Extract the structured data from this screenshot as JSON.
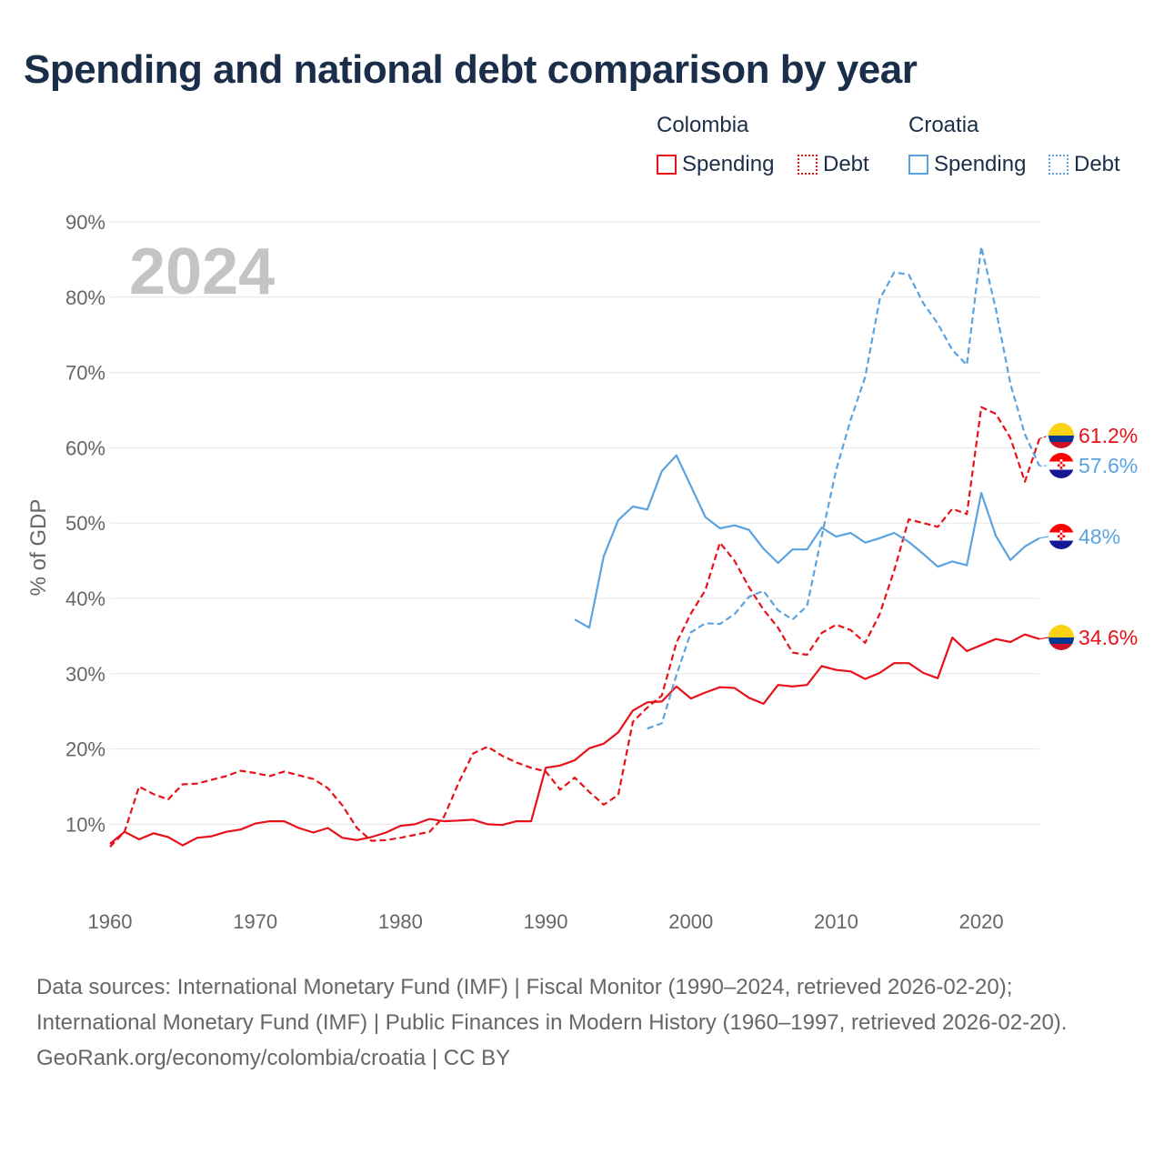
{
  "title": "Spending and national debt comparison by year",
  "legend": {
    "groups": [
      {
        "country": "Colombia",
        "spending_label": "Spending",
        "debt_label": "Debt",
        "color": "#e8111a"
      },
      {
        "country": "Croatia",
        "spending_label": "Spending",
        "debt_label": "Debt",
        "color": "#5ba3e0"
      }
    ]
  },
  "chart_data": {
    "type": "line",
    "title": "Spending and national debt comparison by year",
    "xlabel": "",
    "ylabel": "% of GDP",
    "xlim": [
      1960,
      2024
    ],
    "ylim": [
      0,
      90
    ],
    "y_ticks": [
      10,
      20,
      30,
      40,
      50,
      60,
      70,
      80,
      90
    ],
    "y_tick_labels": [
      "10%",
      "20%",
      "30%",
      "40%",
      "50%",
      "60%",
      "70%",
      "80%",
      "90%"
    ],
    "x_ticks": [
      1960,
      1970,
      1980,
      1990,
      2000,
      2010,
      2020
    ],
    "x_tick_labels": [
      "1960",
      "1970",
      "1980",
      "1990",
      "2000",
      "2010",
      "2020"
    ],
    "year_watermark": "2024",
    "series": [
      {
        "name": "Colombia Spending",
        "country": "Colombia",
        "style": "solid",
        "color": "#e8111a",
        "end_label": "34.6%",
        "x": [
          1960,
          1961,
          1962,
          1963,
          1964,
          1965,
          1966,
          1967,
          1968,
          1969,
          1970,
          1971,
          1972,
          1973,
          1974,
          1975,
          1976,
          1977,
          1978,
          1979,
          1980,
          1981,
          1982,
          1983,
          1984,
          1985,
          1986,
          1987,
          1988,
          1989,
          1990,
          1991,
          1992,
          1993,
          1994,
          1995,
          1996,
          1997,
          1998,
          1999,
          2000,
          2001,
          2002,
          2003,
          2004,
          2005,
          2006,
          2007,
          2008,
          2009,
          2010,
          2011,
          2012,
          2013,
          2014,
          2015,
          2016,
          2017,
          2018,
          2019,
          2020,
          2021,
          2022,
          2023,
          2024
        ],
        "values": [
          7.4,
          9.0,
          8.0,
          8.8,
          8.3,
          7.2,
          8.2,
          8.4,
          9.0,
          9.3,
          10.1,
          10.4,
          10.4,
          9.5,
          8.9,
          9.5,
          8.2,
          7.9,
          8.3,
          8.9,
          9.8,
          10.0,
          10.7,
          10.4,
          10.5,
          10.6,
          10.0,
          9.9,
          10.4,
          10.4,
          17.5,
          17.8,
          18.5,
          20.1,
          20.7,
          22.2,
          25.1,
          26.2,
          26.3,
          28.3,
          26.7,
          27.5,
          28.2,
          28.1,
          26.8,
          26.0,
          28.5,
          28.3,
          28.5,
          31.0,
          30.5,
          30.3,
          29.3,
          30.1,
          31.4,
          31.4,
          30.1,
          29.4,
          34.8,
          33.0,
          33.8,
          34.6,
          34.2,
          35.2,
          34.6
        ]
      },
      {
        "name": "Colombia Debt",
        "country": "Colombia",
        "style": "dashed",
        "color": "#e8111a",
        "end_label": "61.2%",
        "x": [
          1960,
          1961,
          1962,
          1963,
          1964,
          1965,
          1966,
          1967,
          1968,
          1969,
          1970,
          1971,
          1972,
          1973,
          1974,
          1975,
          1976,
          1977,
          1978,
          1979,
          1980,
          1981,
          1982,
          1983,
          1984,
          1985,
          1986,
          1987,
          1988,
          1989,
          1990,
          1991,
          1992,
          1993,
          1994,
          1995,
          1996,
          1997,
          1998,
          1999,
          2000,
          2001,
          2002,
          2003,
          2004,
          2005,
          2006,
          2007,
          2008,
          2009,
          2010,
          2011,
          2012,
          2013,
          2014,
          2015,
          2016,
          2017,
          2018,
          2019,
          2020,
          2021,
          2022,
          2023,
          2024
        ],
        "values": [
          7.0,
          9.0,
          15.0,
          14.0,
          13.3,
          15.3,
          15.4,
          15.9,
          16.4,
          17.1,
          16.8,
          16.4,
          17.0,
          16.5,
          16.0,
          14.8,
          12.5,
          9.5,
          7.8,
          7.9,
          8.2,
          8.6,
          9.0,
          11.0,
          15.5,
          19.4,
          20.3,
          19.1,
          18.2,
          17.5,
          17.0,
          14.6,
          16.2,
          14.3,
          12.6,
          13.9,
          23.6,
          25.5,
          27.1,
          34.1,
          38.0,
          41.1,
          47.4,
          45.0,
          41.5,
          38.5,
          36.1,
          32.8,
          32.5,
          35.4,
          36.5,
          35.8,
          34.1,
          37.9,
          43.7,
          50.5,
          50.0,
          49.5,
          51.9,
          51.2,
          65.4,
          64.5,
          61.3,
          55.5,
          61.2
        ]
      },
      {
        "name": "Croatia Spending",
        "country": "Croatia",
        "style": "solid",
        "color": "#5ba3e0",
        "end_label": "48%",
        "x": [
          1992,
          1993,
          1994,
          1995,
          1996,
          1997,
          1998,
          1999,
          2000,
          2001,
          2002,
          2003,
          2004,
          2005,
          2006,
          2007,
          2008,
          2009,
          2010,
          2011,
          2012,
          2013,
          2014,
          2015,
          2016,
          2017,
          2018,
          2019,
          2020,
          2021,
          2022,
          2023,
          2024
        ],
        "values": [
          37.2,
          36.1,
          45.6,
          50.4,
          52.2,
          51.8,
          56.9,
          59.0,
          54.9,
          50.8,
          49.3,
          49.7,
          49.1,
          46.6,
          44.7,
          46.5,
          46.5,
          49.4,
          48.2,
          48.7,
          47.4,
          48.0,
          48.7,
          47.5,
          45.9,
          44.2,
          44.9,
          44.4,
          54.0,
          48.3,
          45.1,
          46.9,
          48.0
        ]
      },
      {
        "name": "Croatia Debt",
        "country": "Croatia",
        "style": "dashed",
        "color": "#5ba3e0",
        "end_label": "57.6%",
        "x": [
          1997,
          1998,
          1999,
          2000,
          2001,
          2002,
          2003,
          2004,
          2005,
          2006,
          2007,
          2008,
          2009,
          2010,
          2011,
          2012,
          2013,
          2014,
          2015,
          2016,
          2017,
          2018,
          2019,
          2020,
          2021,
          2022,
          2023,
          2024
        ],
        "values": [
          22.7,
          23.4,
          29.8,
          35.5,
          36.7,
          36.6,
          37.9,
          40.2,
          41.0,
          38.4,
          37.2,
          39.0,
          48.2,
          57.0,
          63.7,
          69.4,
          79.7,
          83.3,
          83.0,
          79.2,
          76.5,
          73.0,
          71.0,
          86.7,
          78.4,
          68.5,
          61.8,
          57.6
        ]
      }
    ]
  }
}
